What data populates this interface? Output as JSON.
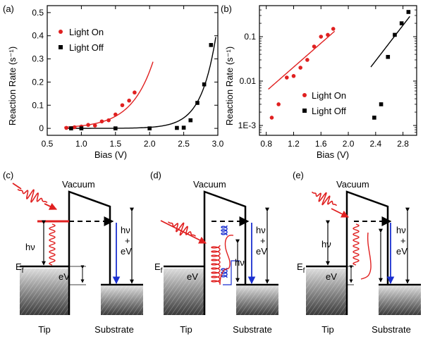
{
  "chart_data": [
    {
      "panel": "(a)",
      "type": "scatter",
      "xlabel": "Bias (V)",
      "ylabel": "Reaction Rate (s⁻¹)",
      "xlim": [
        0.5,
        3.0
      ],
      "ylim": [
        -0.03,
        0.53
      ],
      "yscale": "linear",
      "x_ticks": [
        "0.5",
        "1.0",
        "1.5",
        "2.0",
        "2.5",
        "3.0"
      ],
      "y_ticks": [
        "0",
        "0.1",
        "0.2",
        "0.3",
        "0.4",
        "0.5"
      ],
      "x_tick_values": [
        0.5,
        1.0,
        1.5,
        2.0,
        2.5,
        3.0
      ],
      "y_tick_values": [
        0,
        0.1,
        0.2,
        0.3,
        0.4,
        0.5
      ],
      "legend_position": "top-left",
      "series": [
        {
          "name": "Light On",
          "marker": "circle",
          "color": "#e02020",
          "x": [
            0.78,
            0.9,
            1.0,
            1.1,
            1.2,
            1.3,
            1.4,
            1.5,
            1.6,
            1.7,
            1.78
          ],
          "y": [
            0.002,
            0.005,
            0.008,
            0.015,
            0.012,
            0.03,
            0.035,
            0.06,
            0.1,
            0.12,
            0.155
          ],
          "fit": {
            "x_from": 0.75,
            "x_to": 2.05,
            "a": 0.0005,
            "b": 3.1
          }
        },
        {
          "name": "Light Off",
          "marker": "square",
          "color": "#000000",
          "x": [
            0.85,
            1.0,
            1.5,
            2.0,
            2.4,
            2.5,
            2.6,
            2.7,
            2.8,
            2.9
          ],
          "y": [
            0.0,
            0.0,
            0.0,
            0.0,
            0.002,
            0.003,
            0.035,
            0.11,
            0.19,
            0.36
          ],
          "fit": {
            "x_from": 0.8,
            "x_to": 2.97,
            "a": 4.6e-07,
            "b": 4.6
          }
        }
      ]
    },
    {
      "panel": "(b)",
      "type": "scatter",
      "xlabel": "Bias (V)",
      "ylabel": "Reaction Rate (s⁻¹)",
      "xlim": [
        0.7,
        3.0
      ],
      "ylim": [
        0.0006,
        0.5
      ],
      "yscale": "log",
      "x_ticks": [
        "0.8",
        "1.2",
        "1.6",
        "2.0",
        "2.4",
        "2.8"
      ],
      "y_ticks": [
        "1E-3",
        "0.01",
        "0.1"
      ],
      "x_tick_values": [
        0.8,
        1.2,
        1.6,
        2.0,
        2.4,
        2.8
      ],
      "y_tick_values": [
        0.001,
        0.01,
        0.1
      ],
      "legend_position": "center",
      "series": [
        {
          "name": "Light On",
          "marker": "circle",
          "color": "#e02020",
          "x": [
            0.88,
            0.98,
            1.1,
            1.2,
            1.3,
            1.4,
            1.5,
            1.6,
            1.7,
            1.78
          ],
          "y": [
            0.0015,
            0.003,
            0.012,
            0.013,
            0.02,
            0.03,
            0.06,
            0.1,
            0.11,
            0.15
          ],
          "fit": {
            "x_from": 0.83,
            "x_to": 1.8,
            "a": 0.0005,
            "b": 3.1
          }
        },
        {
          "name": "Light Off",
          "marker": "square",
          "color": "#000000",
          "x": [
            2.38,
            2.48,
            2.58,
            2.68,
            2.78,
            2.88
          ],
          "y": [
            0.0015,
            0.003,
            0.035,
            0.11,
            0.2,
            0.36
          ],
          "fit": {
            "x_from": 2.33,
            "x_to": 2.9,
            "a": 4.6e-07,
            "b": 4.6
          }
        }
      ]
    }
  ],
  "diagrams": [
    {
      "panel": "(c)",
      "labels": {
        "vacuum": "Vacuum",
        "ef": "E",
        "ef_sub": "f",
        "hv": "hν",
        "ev": "eV",
        "hv_ev_1": "hν",
        "hv_ev_2": "+",
        "hv_ev_3": "eV",
        "tip": "Tip",
        "substrate": "Substrate"
      }
    },
    {
      "panel": "(d)",
      "labels": {
        "vacuum": "Vacuum",
        "ef": "E",
        "ef_sub": "f",
        "hv": "hν",
        "ev": "eV",
        "hv_ev_1": "hν",
        "hv_ev_2": "+",
        "hv_ev_3": "eV",
        "tip": "Tip",
        "substrate": "Substrate"
      }
    },
    {
      "panel": "(e)",
      "labels": {
        "vacuum": "Vacuum",
        "ef": "E",
        "ef_sub": "f",
        "hv": "hν",
        "ev": "eV",
        "hv_ev_1": "hν",
        "hv_ev_2": "+",
        "hv_ev_3": "eV",
        "tip": "Tip",
        "substrate": "Substrate"
      }
    }
  ],
  "colors": {
    "light_on": "#e02020",
    "light_off": "#000000",
    "transfer_arrow": "#1a2fd0"
  }
}
